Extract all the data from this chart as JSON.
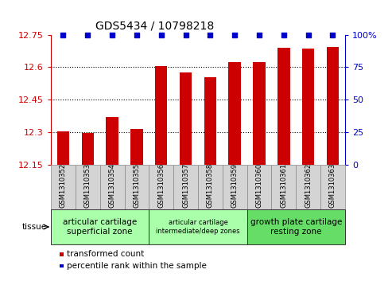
{
  "title": "GDS5434 / 10798218",
  "samples": [
    "GSM1310352",
    "GSM1310353",
    "GSM1310354",
    "GSM1310355",
    "GSM1310356",
    "GSM1310357",
    "GSM1310358",
    "GSM1310359",
    "GSM1310360",
    "GSM1310361",
    "GSM1310362",
    "GSM1310363"
  ],
  "bar_values": [
    12.305,
    12.295,
    12.37,
    12.315,
    12.605,
    12.575,
    12.555,
    12.625,
    12.625,
    12.69,
    12.685,
    12.695
  ],
  "percentile_values": [
    100,
    100,
    100,
    100,
    100,
    100,
    100,
    100,
    100,
    100,
    100,
    100
  ],
  "bar_color": "#cc0000",
  "percentile_color": "#0000cc",
  "ymin": 12.15,
  "ymax": 12.75,
  "yticks": [
    12.15,
    12.3,
    12.45,
    12.6,
    12.75
  ],
  "ytick_labels": [
    "12.15",
    "12.3",
    "12.45",
    "12.6",
    "12.75"
  ],
  "y2min": 0,
  "y2max": 100,
  "y2ticks": [
    0,
    25,
    50,
    75,
    100
  ],
  "y2tick_labels": [
    "0",
    "25",
    "50",
    "75",
    "100%"
  ],
  "tissue_groups": [
    {
      "label": "articular cartilage\nsuperficial zone",
      "start": 0,
      "end": 3,
      "color": "#aaffaa",
      "font_large": true
    },
    {
      "label": "articular cartilage\nintermediate/deep zones",
      "start": 4,
      "end": 7,
      "color": "#aaffaa",
      "font_large": false
    },
    {
      "label": "growth plate cartilage\nresting zone",
      "start": 8,
      "end": 11,
      "color": "#66dd66",
      "font_large": true
    }
  ],
  "tissue_label": "tissue",
  "legend_entries": [
    {
      "label": "transformed count",
      "color": "#cc0000"
    },
    {
      "label": "percentile rank within the sample",
      "color": "#0000cc"
    }
  ],
  "background_color": "#ffffff",
  "bar_width": 0.5,
  "figsize": [
    4.93,
    3.63
  ],
  "dpi": 100
}
